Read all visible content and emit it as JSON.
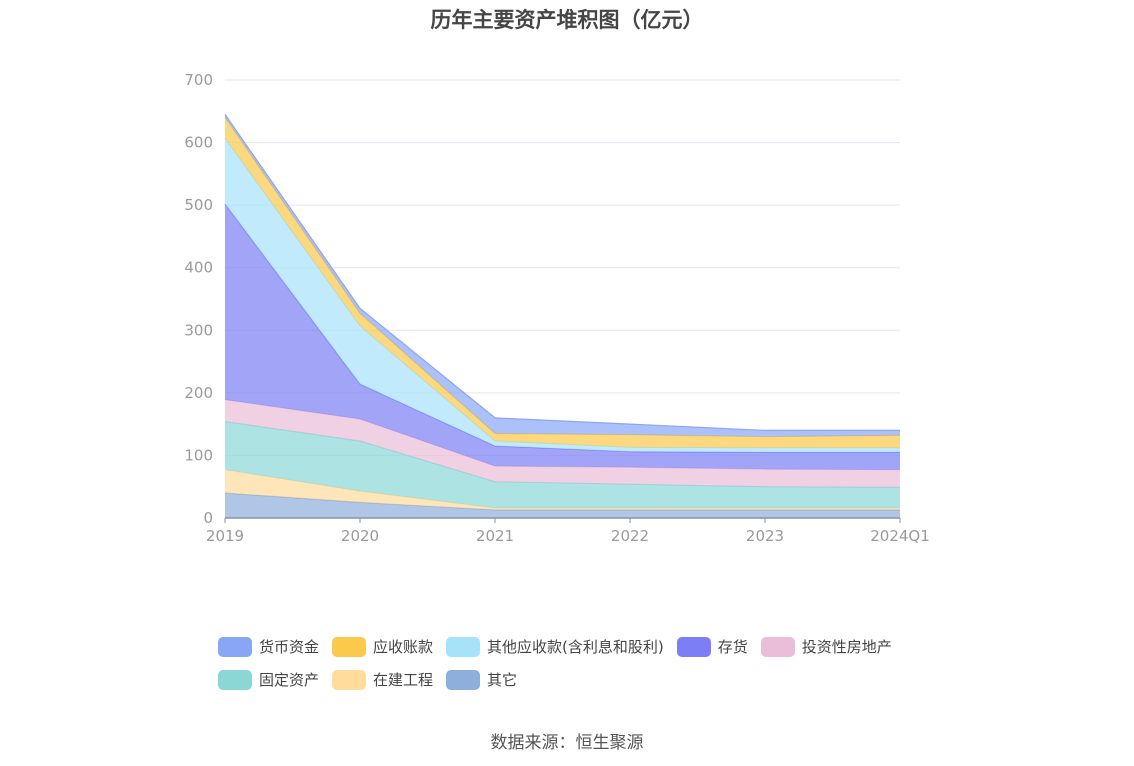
{
  "chart_data": {
    "type": "area",
    "stacked": true,
    "title": "历年主要资产堆积图（亿元）",
    "categories": [
      "2019",
      "2020",
      "2021",
      "2022",
      "2023",
      "2024Q1"
    ],
    "ylim": [
      0,
      700
    ],
    "yticks": [
      0,
      100,
      200,
      300,
      400,
      500,
      600,
      700
    ],
    "grid": true,
    "legend_position": "bottom",
    "series": [
      {
        "name": "其它",
        "color": "#8eaedb",
        "values": [
          40,
          25,
          13,
          13,
          13,
          13
        ]
      },
      {
        "name": "在建工程",
        "color": "#fddc9c",
        "values": [
          37,
          18,
          3,
          3,
          3,
          3
        ]
      },
      {
        "name": "固定资产",
        "color": "#8ad7d6",
        "values": [
          77,
          80,
          42,
          38,
          34,
          33
        ]
      },
      {
        "name": "投资性房地产",
        "color": "#eabdd9",
        "values": [
          35,
          35,
          25,
          27,
          28,
          28
        ]
      },
      {
        "name": "存货",
        "color": "#7b7ef5",
        "values": [
          313,
          56,
          32,
          25,
          27,
          28
        ]
      },
      {
        "name": "其他应收款(含利息和股利)",
        "color": "#a7e2fb",
        "values": [
          105,
          93,
          8,
          7,
          7,
          7
        ]
      },
      {
        "name": "应收账款",
        "color": "#fbc94b",
        "values": [
          33,
          20,
          12,
          20,
          18,
          20
        ]
      },
      {
        "name": "货币资金",
        "color": "#89a6f6",
        "values": [
          5,
          8,
          25,
          17,
          10,
          8
        ]
      }
    ]
  },
  "legend": [
    [
      "货币资金",
      "应收账款",
      "其他应收款(含利息和股利)",
      "存货",
      "投资性房地产"
    ],
    [
      "固定资产",
      "在建工程",
      "其它"
    ]
  ],
  "source": "数据来源：恒生聚源"
}
